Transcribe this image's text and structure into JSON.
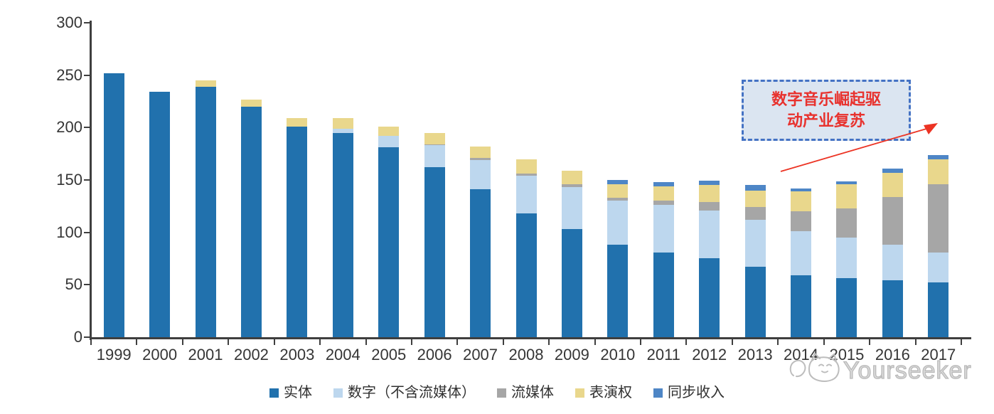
{
  "chart_data": {
    "type": "bar",
    "stacked": true,
    "title": "",
    "xlabel": "",
    "ylabel": "",
    "categories": [
      "1999",
      "2000",
      "2001",
      "2002",
      "2003",
      "2004",
      "2005",
      "2006",
      "2007",
      "2008",
      "2009",
      "2010",
      "2011",
      "2012",
      "2013",
      "2014",
      "2015",
      "2016",
      "2017"
    ],
    "series": [
      {
        "name": "实体",
        "color": "#2171ad",
        "values": [
          252,
          234,
          239,
          220,
          201,
          195,
          181,
          162,
          141,
          118,
          103,
          88,
          81,
          75,
          67,
          59,
          56,
          54,
          52
        ]
      },
      {
        "name": "数字（不含流媒体）",
        "color": "#bdd7ee",
        "values": [
          0,
          0,
          0,
          0,
          0,
          4,
          11,
          21,
          28,
          36,
          40,
          42,
          45,
          46,
          45,
          42,
          39,
          34,
          29
        ]
      },
      {
        "name": "流媒体",
        "color": "#a6a6a6",
        "values": [
          0,
          0,
          0,
          0,
          0,
          0,
          0,
          1,
          2,
          2,
          3,
          3,
          4,
          8,
          12,
          19,
          28,
          46,
          65
        ]
      },
      {
        "name": "表演权",
        "color": "#e9d78c",
        "values": [
          0,
          0,
          6,
          7,
          8,
          10,
          9,
          11,
          11,
          14,
          13,
          13,
          14,
          16,
          16,
          19,
          23,
          23,
          24
        ]
      },
      {
        "name": "同步收入",
        "color": "#4e86c6",
        "values": [
          0,
          0,
          0,
          0,
          0,
          0,
          0,
          0,
          0,
          0,
          0,
          4,
          4,
          4,
          5,
          3,
          3,
          4,
          4
        ]
      }
    ],
    "ylim": [
      0,
      300
    ],
    "yticks": [
      0,
      50,
      100,
      150,
      200,
      250,
      300
    ],
    "grid": false,
    "legend_position": "bottom",
    "axis_color": "#3f3f3f",
    "tick_label_color": "#353535"
  },
  "annotation": {
    "line1": "数字音乐崛起驱",
    "line2": "动产业复苏",
    "full_text": "数字音乐崛起驱动产业复苏",
    "border_color": "#4472c4",
    "fill_color": "#dbe5f1",
    "text_color": "#e8322e",
    "arrow_color": "#ec3323"
  },
  "watermark": {
    "text": "Yourseeker",
    "logo_icon": "cat-logo-icon",
    "color": "#bcbcbc"
  }
}
